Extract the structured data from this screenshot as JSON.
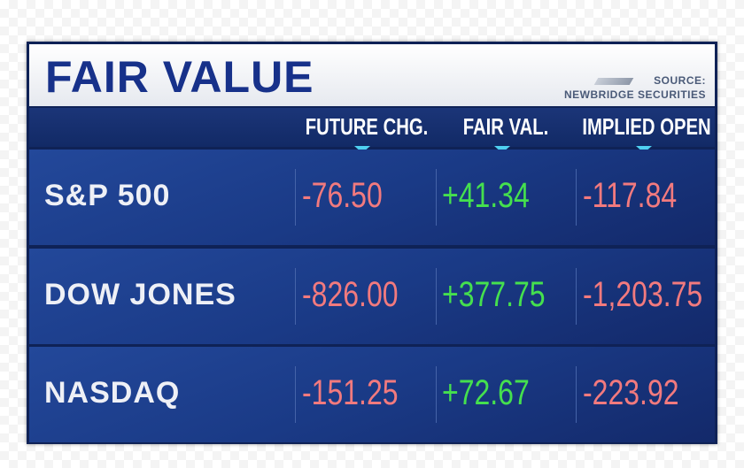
{
  "header": {
    "title": "FAIR VALUE",
    "source": [
      "SOURCE:",
      "NEWBRIDGE SECURITIES"
    ]
  },
  "table": {
    "columns": [
      "FUTURE CHG.",
      "FAIR VAL.",
      "IMPLIED OPEN"
    ],
    "rows": [
      [
        "S&P 500",
        "-76.50",
        "+41.34",
        "-117.84"
      ],
      [
        "DOW JONES",
        "-826.00",
        "+377.75",
        "-1,203.75"
      ],
      [
        "NASDAQ",
        "-151.25",
        "+72.67",
        "-223.92"
      ]
    ]
  }
}
